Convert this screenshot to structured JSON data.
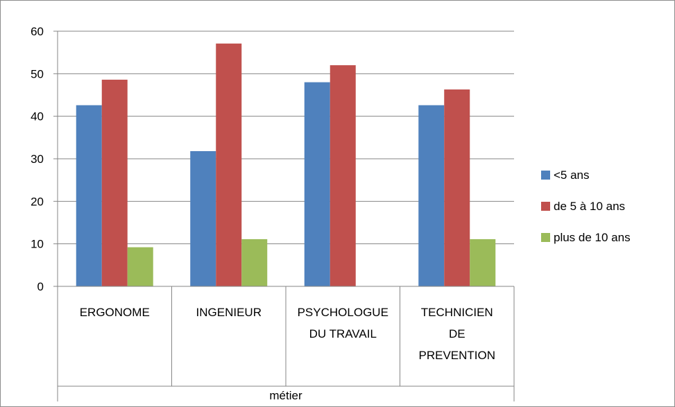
{
  "chart_data": {
    "type": "bar",
    "title": "",
    "ylabel": "",
    "xlabel": "métier",
    "ylim": [
      0,
      60
    ],
    "yticks": [
      "0",
      "10",
      "20",
      "30",
      "40",
      "50",
      "60"
    ],
    "grid": true,
    "legend_position": "right",
    "categories": [
      [
        "ERGONOME"
      ],
      [
        "INGENIEUR"
      ],
      [
        "PSYCHOLOGUE",
        "DU TRAVAIL"
      ],
      [
        "TECHNICIEN",
        "DE",
        "PREVENTION"
      ]
    ],
    "series": [
      {
        "name": "<5 ans",
        "color": "#4f81bd",
        "values": [
          42.6,
          31.8,
          48,
          42.6
        ]
      },
      {
        "name": "de 5 à 10 ans",
        "color": "#c0504d",
        "values": [
          48.6,
          57.1,
          52,
          46.3
        ]
      },
      {
        "name": "plus de 10 ans",
        "color": "#9bbb59",
        "values": [
          9.2,
          11.1,
          0,
          11.1
        ]
      }
    ]
  }
}
